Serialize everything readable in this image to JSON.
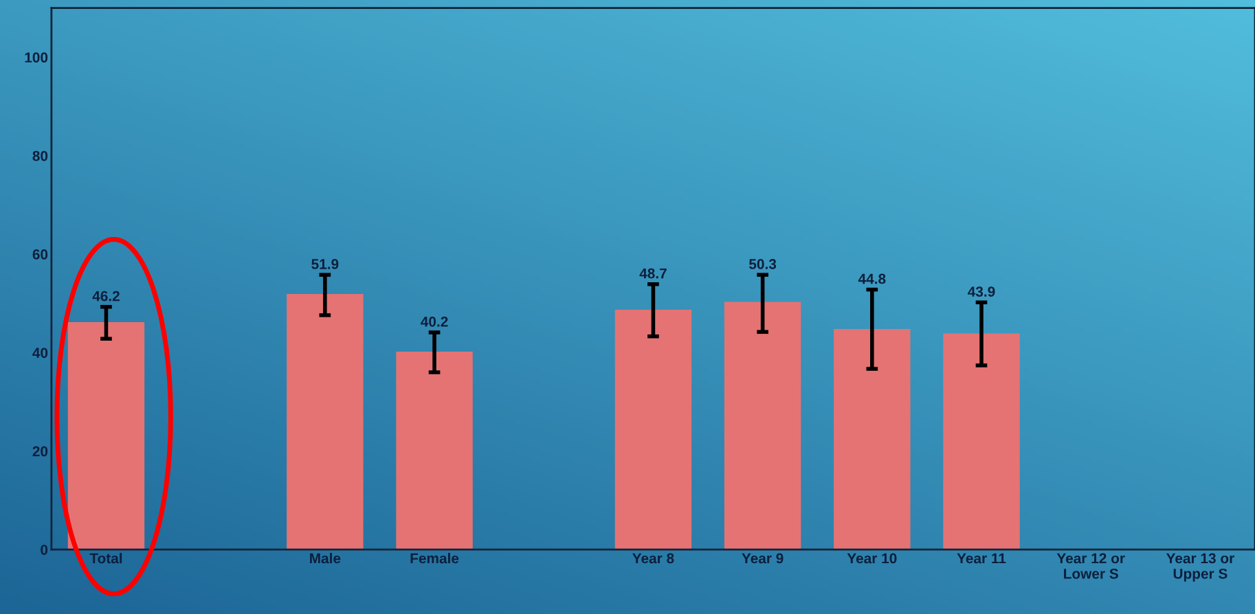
{
  "chart_data": {
    "type": "bar",
    "categories": [
      "Total",
      null,
      "Male",
      "Female",
      null,
      "Year 8",
      "Year 9",
      "Year 10",
      "Year 11",
      "Year 12 or\nLower S",
      "Year 13 or\nUpper S"
    ],
    "values": [
      46.2,
      null,
      51.9,
      40.2,
      null,
      48.7,
      50.3,
      44.8,
      43.9,
      null,
      null
    ],
    "errors": [
      [
        42.8,
        49.3
      ],
      null,
      [
        47.6,
        55.8
      ],
      [
        36.0,
        44.1
      ],
      null,
      [
        43.3,
        53.9
      ],
      [
        44.2,
        55.8
      ],
      [
        36.7,
        52.8
      ],
      [
        37.4,
        50.2
      ],
      null,
      null
    ],
    "color": "#e57373",
    "data_labels": true,
    "ylim": [
      0,
      110
    ],
    "yticks": [
      0,
      20,
      40,
      60,
      80,
      100
    ],
    "grid": false,
    "legend": false
  }
}
